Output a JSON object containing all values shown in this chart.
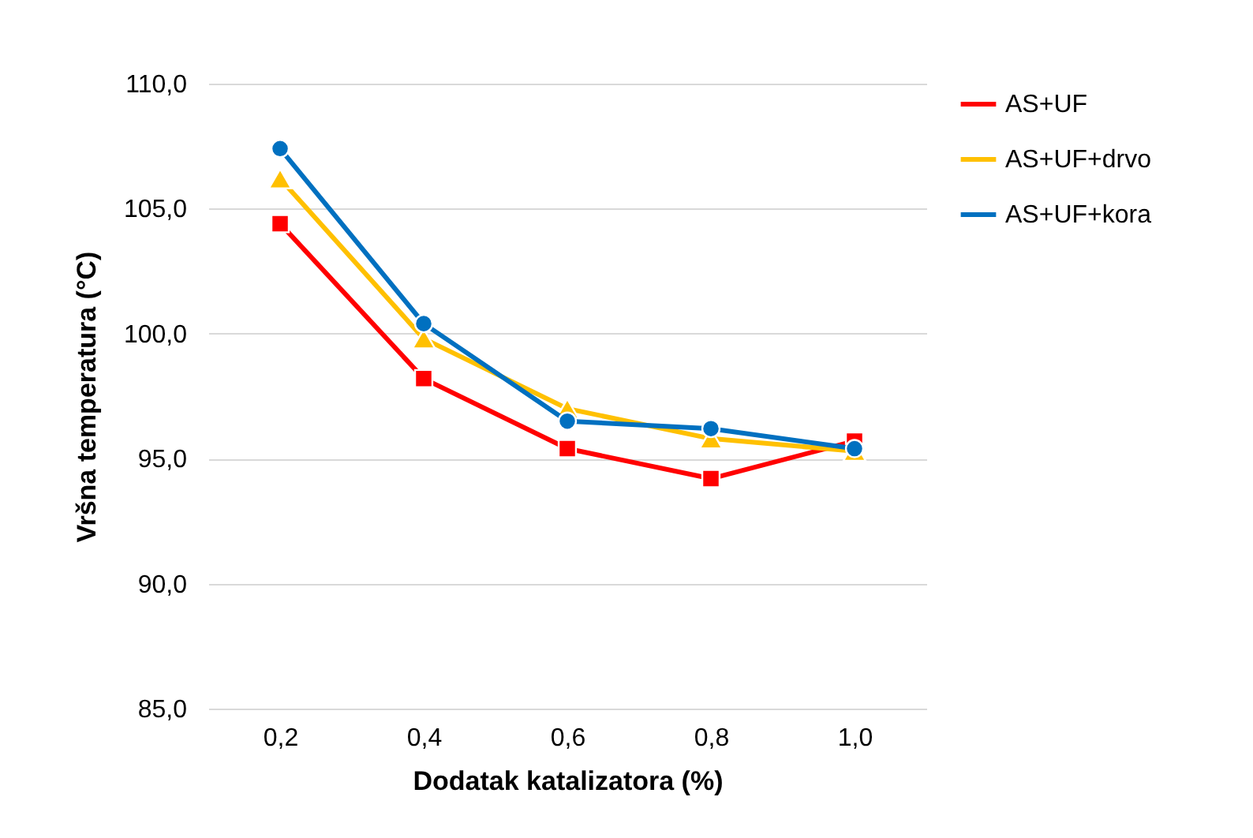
{
  "chart_data": {
    "type": "line",
    "xlabel": "Dodatak katalizatora (%)",
    "ylabel": "Vršna temperatura (°C)",
    "categories": [
      "0,2",
      "0,4",
      "0,6",
      "0,8",
      "1,0"
    ],
    "ylim": [
      85,
      110
    ],
    "yticks": [
      {
        "value": 85,
        "label": "85,0"
      },
      {
        "value": 90,
        "label": "90,0"
      },
      {
        "value": 95,
        "label": "95,0"
      },
      {
        "value": 100,
        "label": "100,0"
      },
      {
        "value": 105,
        "label": "105,0"
      },
      {
        "value": 110,
        "label": "110,0"
      }
    ],
    "grid": "y",
    "legend": "right",
    "series": [
      {
        "name": "AS+UF",
        "color": "#ff0000",
        "marker": "square",
        "values": [
          104.4,
          98.2,
          95.4,
          94.2,
          95.7
        ]
      },
      {
        "name": "AS+UF+drvo",
        "color": "#ffc000",
        "marker": "triangle",
        "values": [
          106.2,
          99.8,
          97.0,
          95.8,
          95.3
        ]
      },
      {
        "name": "AS+UF+kora",
        "color": "#0070c0",
        "marker": "circle",
        "values": [
          107.4,
          100.4,
          96.5,
          96.2,
          95.4
        ]
      }
    ]
  }
}
